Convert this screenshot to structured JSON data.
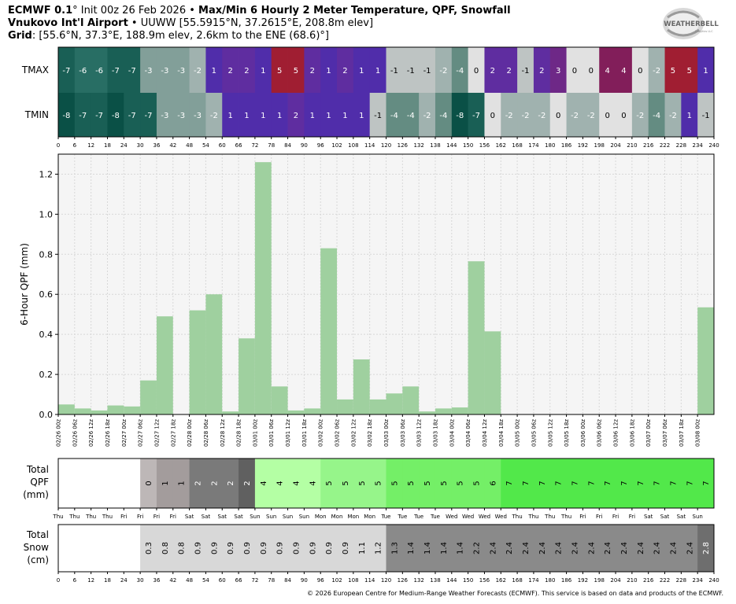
{
  "header": {
    "model": "ECMWF 0.1",
    "model_deg": "°",
    "init": " Init 00z 26 Feb 2026",
    "sep1": " • ",
    "product": "Max/Min 6 Hourly 2 Meter Temperature, QPF, Snowfall",
    "station": "Vnukovo Int'l Airport",
    "sep2": " • ",
    "station_info": "UUWW [55.5915°N, 37.2615°E, 208.8m elev]",
    "grid_label": "Grid",
    "grid_info": ": [55.6°N, 37.3°E, 188.9m elev, 2.6km to the ENE (68.6)°]"
  },
  "logo": {
    "text": "WEATHERBELL",
    "sub": "Analytics LLC"
  },
  "footer": "© 2026 European Centre for Medium-Range Weather Forecasts (ECMWF). This service is based on data and products of the ECMWF.",
  "chart_data": [
    {
      "type": "heatmap",
      "rows": [
        "TMAX",
        "TMIN"
      ],
      "hour_ticks": [
        0,
        6,
        12,
        18,
        24,
        30,
        36,
        42,
        48,
        54,
        60,
        66,
        72,
        78,
        84,
        90,
        96,
        102,
        108,
        114,
        120,
        126,
        132,
        138,
        144,
        150,
        156,
        162,
        168,
        174,
        180,
        186,
        192,
        198,
        204,
        210,
        216,
        222,
        228,
        234,
        240
      ],
      "tmax": [
        -7,
        -6,
        -6,
        -7,
        -7,
        -3,
        -3,
        -3,
        -2,
        1,
        2,
        2,
        1,
        5,
        5,
        2,
        1,
        2,
        1,
        1,
        -1,
        -1,
        -1,
        -2,
        -4,
        0,
        2,
        2,
        -1,
        2,
        3,
        0,
        0,
        4,
        4,
        0,
        -2,
        5,
        5,
        1
      ],
      "tmin": [
        -8,
        -7,
        -7,
        -8,
        -7,
        -7,
        -3,
        -3,
        -3,
        -2,
        1,
        1,
        1,
        1,
        2,
        1,
        1,
        1,
        1,
        -1,
        -4,
        -4,
        -2,
        -4,
        -8,
        -7,
        0,
        -2,
        -2,
        -2,
        0,
        -2,
        -2,
        0,
        0,
        -2,
        -4,
        -2,
        1,
        -1
      ]
    },
    {
      "type": "bar",
      "ylabel": "6-Hour QPF (mm)",
      "ylim": [
        0,
        1.3
      ],
      "yticks": [
        "0.0",
        "0.2",
        "0.4",
        "0.6",
        "0.8",
        "1.0",
        "1.2"
      ],
      "grid": true,
      "categories": [
        "02/26 00z",
        "02/26 06z",
        "02/26 12z",
        "02/26 18z",
        "02/27 00z",
        "02/27 06z",
        "02/27 12z",
        "02/27 18z",
        "02/28 00z",
        "02/28 06z",
        "02/28 12z",
        "02/28 18z",
        "03/01 00z",
        "03/01 06z",
        "03/01 12z",
        "03/01 18z",
        "03/02 00z",
        "03/02 06z",
        "03/02 12z",
        "03/02 18z",
        "03/03 00z",
        "03/03 06z",
        "03/03 12z",
        "03/03 18z",
        "03/04 00z",
        "03/04 06z",
        "03/04 12z",
        "03/04 18z",
        "03/05 00z",
        "03/05 06z",
        "03/05 12z",
        "03/05 18z",
        "03/06 00z",
        "03/06 06z",
        "03/06 12z",
        "03/06 18z",
        "03/07 00z",
        "03/07 06z",
        "03/07 18z",
        "03/08 00z"
      ],
      "values": [
        0.05,
        0.03,
        0.02,
        0.045,
        0.04,
        0.17,
        0.49,
        0.0,
        0.52,
        0.6,
        0.015,
        0.38,
        1.26,
        0.14,
        0.02,
        0.03,
        0.83,
        0.075,
        0.275,
        0.075,
        0.105,
        0.14,
        0.015,
        0.03,
        0.035,
        0.765,
        0.415,
        0,
        0,
        0,
        0,
        0,
        0,
        0,
        0,
        0,
        0,
        0,
        0,
        0.535
      ]
    },
    {
      "type": "table",
      "label": "Total QPF (mm)",
      "label_lines": [
        "Total",
        "QPF",
        "(mm)"
      ],
      "days": [
        "Thu",
        "Thu",
        "Thu",
        "Thu",
        "Fri",
        "Fri",
        "Fri",
        "Fri",
        "Sat",
        "Sat",
        "Sat",
        "Sat",
        "Sun",
        "Sun",
        "Sun",
        "Sun",
        "Mon",
        "Mon",
        "Mon",
        "Mon",
        "Tue",
        "Tue",
        "Tue",
        "Tue",
        "Wed",
        "Wed",
        "Wed",
        "Wed",
        "Thu",
        "Thu",
        "Thu",
        "Thu",
        "Fri",
        "Fri",
        "Fri",
        "Fri",
        "Sat",
        "Sat",
        "Sat",
        "Sun"
      ],
      "values": [
        "",
        "",
        "",
        "",
        "",
        "0",
        "1",
        "1",
        "2",
        "2",
        "2",
        "2",
        "4",
        "4",
        "4",
        "4",
        "5",
        "5",
        "5",
        "5",
        "5",
        "5",
        "5",
        "5",
        "5",
        "5",
        "6",
        "7",
        "7",
        "7",
        "7",
        "7",
        "7",
        "7",
        "7",
        "7",
        "7",
        "7",
        "7",
        "7"
      ]
    },
    {
      "type": "table",
      "label": "Total Snow (cm)",
      "label_lines": [
        "Total",
        "Snow",
        "(cm)"
      ],
      "hour_ticks": [
        0,
        6,
        12,
        18,
        24,
        30,
        36,
        42,
        48,
        54,
        60,
        66,
        72,
        78,
        84,
        90,
        96,
        102,
        108,
        114,
        120,
        126,
        132,
        138,
        144,
        150,
        156,
        162,
        168,
        174,
        180,
        186,
        192,
        198,
        204,
        210,
        216,
        222,
        228,
        234,
        240
      ],
      "values": [
        "",
        "",
        "",
        "",
        "",
        "0.3",
        "0.8",
        "0.8",
        "0.9",
        "0.9",
        "0.9",
        "0.9",
        "0.9",
        "0.9",
        "0.9",
        "0.9",
        "0.9",
        "0.9",
        "1.1",
        "1.2",
        "1.3",
        "1.4",
        "1.4",
        "1.4",
        "1.4",
        "2.2",
        "2.4",
        "2.4",
        "2.4",
        "2.4",
        "2.4",
        "2.4",
        "2.4",
        "2.4",
        "2.4",
        "2.4",
        "2.4",
        "2.4",
        "2.4",
        "2.8"
      ]
    }
  ],
  "colors": {
    "bar_fill": "#9fd09f",
    "plot_bg": "#f5f5f5",
    "qpf_scale": [
      "#ffffff",
      "#bdb7b7",
      "#a39c9c",
      "#7a7a7a",
      "#606060",
      "#b4ffa4",
      "#96f58a",
      "#74ef67",
      "#52e84a"
    ],
    "snow_scale": [
      "#ffffff",
      "#d8d8d8",
      "#bdbdbd",
      "#8a8a8a",
      "#6e6e6e"
    ]
  }
}
